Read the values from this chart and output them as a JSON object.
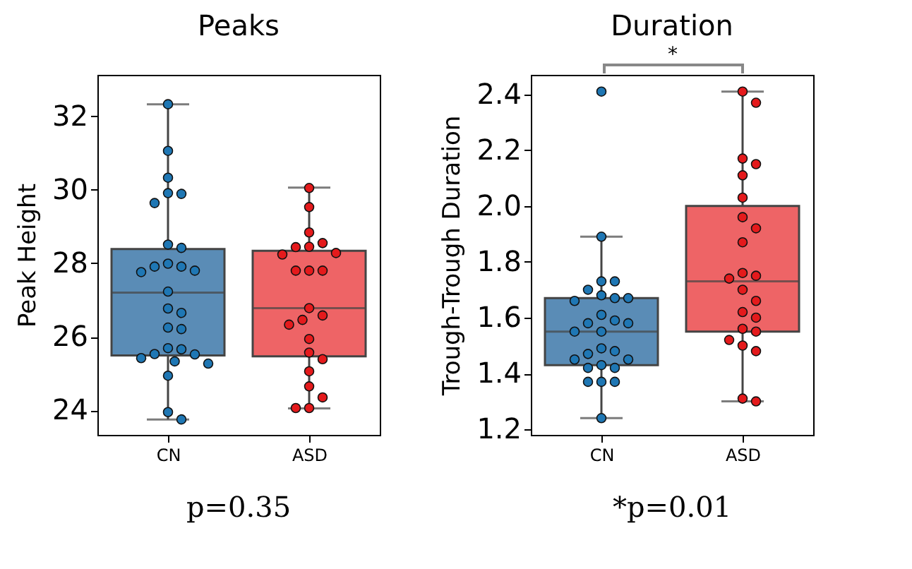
{
  "chart_data": [
    {
      "type": "box",
      "title": "Peaks",
      "ylabel": "Peak Height",
      "categories": [
        "CN",
        "ASD"
      ],
      "colors": [
        "#5a8cb6",
        "#ee6466"
      ],
      "boxes": [
        {
          "low": 23.75,
          "q1": 25.49,
          "median": 27.2,
          "q3": 28.39,
          "high": 32.33
        },
        {
          "low": 24.05,
          "q1": 25.47,
          "median": 26.78,
          "q3": 28.34,
          "high": 30.06
        }
      ],
      "series": [
        {
          "type": "scatter",
          "color": "#1f77b4",
          "x": [
            "CN",
            "CN",
            "CN",
            "CN",
            "CN",
            "CN",
            "CN",
            "CN",
            "CN",
            "CN",
            "CN",
            "CN",
            "CN",
            "CN",
            "CN",
            "CN",
            "CN",
            "CN",
            "CN",
            "CN",
            "CN",
            "CN",
            "CN",
            "CN",
            "CN",
            "CN",
            "CN",
            "CN"
          ],
          "values": [
            32.33,
            31.06,
            30.33,
            29.91,
            29.89,
            29.64,
            28.51,
            28.42,
            27.99,
            27.91,
            27.8,
            27.91,
            27.76,
            27.23,
            26.77,
            26.65,
            26.25,
            26.21,
            25.69,
            25.66,
            25.53,
            25.52,
            25.42,
            25.33,
            25.27,
            24.94,
            23.95,
            23.75
          ]
        },
        {
          "type": "scatter",
          "color": "#e41a1c",
          "x": [
            "ASD",
            "ASD",
            "ASD",
            "ASD",
            "ASD",
            "ASD",
            "ASD",
            "ASD",
            "ASD",
            "ASD",
            "ASD",
            "ASD",
            "ASD",
            "ASD",
            "ASD",
            "ASD",
            "ASD",
            "ASD",
            "ASD",
            "ASD",
            "ASD",
            "ASD",
            "ASD"
          ],
          "values": [
            30.05,
            29.53,
            28.84,
            28.55,
            28.45,
            28.44,
            28.28,
            28.24,
            27.8,
            27.8,
            27.8,
            26.78,
            26.58,
            26.46,
            26.33,
            25.94,
            25.57,
            25.39,
            25.06,
            24.65,
            24.35,
            24.06,
            24.06
          ]
        }
      ],
      "ylim": [
        23.33,
        33.13
      ],
      "yticks": [
        24,
        26,
        28,
        30,
        32
      ],
      "annotations": [
        "p=0.35"
      ]
    },
    {
      "type": "box",
      "title": "Duration",
      "ylabel": "Trough-Trough Duration",
      "categories": [
        "CN",
        "ASD"
      ],
      "colors": [
        "#5a8cb6",
        "#ee6466"
      ],
      "boxes": [
        {
          "low": 1.24,
          "q1": 1.43,
          "median": 1.55,
          "q3": 1.67,
          "high": 1.89
        },
        {
          "low": 1.3,
          "q1": 1.55,
          "median": 1.73,
          "q3": 2.0,
          "high": 2.41
        }
      ],
      "series": [
        {
          "type": "scatter",
          "color": "#1f77b4",
          "x": [
            "CN",
            "CN",
            "CN",
            "CN",
            "CN",
            "CN",
            "CN",
            "CN",
            "CN",
            "CN",
            "CN",
            "CN",
            "CN",
            "CN",
            "CN",
            "CN",
            "CN",
            "CN",
            "CN",
            "CN",
            "CN",
            "CN",
            "CN",
            "CN",
            "CN",
            "CN",
            "CN"
          ],
          "values": [
            2.41,
            1.89,
            1.73,
            1.73,
            1.7,
            1.68,
            1.67,
            1.67,
            1.66,
            1.61,
            1.59,
            1.58,
            1.58,
            1.55,
            1.55,
            1.49,
            1.48,
            1.47,
            1.45,
            1.45,
            1.43,
            1.42,
            1.42,
            1.37,
            1.37,
            1.37,
            1.24
          ]
        },
        {
          "type": "scatter",
          "color": "#e41a1c",
          "x": [
            "ASD",
            "ASD",
            "ASD",
            "ASD",
            "ASD",
            "ASD",
            "ASD",
            "ASD",
            "ASD",
            "ASD",
            "ASD",
            "ASD",
            "ASD",
            "ASD",
            "ASD",
            "ASD",
            "ASD",
            "ASD",
            "ASD",
            "ASD",
            "ASD",
            "ASD",
            "ASD"
          ],
          "values": [
            2.41,
            2.37,
            2.17,
            2.15,
            2.11,
            2.03,
            1.96,
            1.92,
            1.87,
            1.76,
            1.75,
            1.74,
            1.7,
            1.66,
            1.62,
            1.6,
            1.56,
            1.55,
            1.52,
            1.5,
            1.48,
            1.31,
            1.3
          ]
        }
      ],
      "ylim": [
        1.18,
        2.47
      ],
      "yticks": [
        1.2,
        1.4,
        1.6,
        1.8,
        {
          "value": 2,
          "label": "2.0"
        },
        2.2,
        2.4
      ],
      "annotations": [
        "*",
        "*p=0.01"
      ]
    }
  ]
}
